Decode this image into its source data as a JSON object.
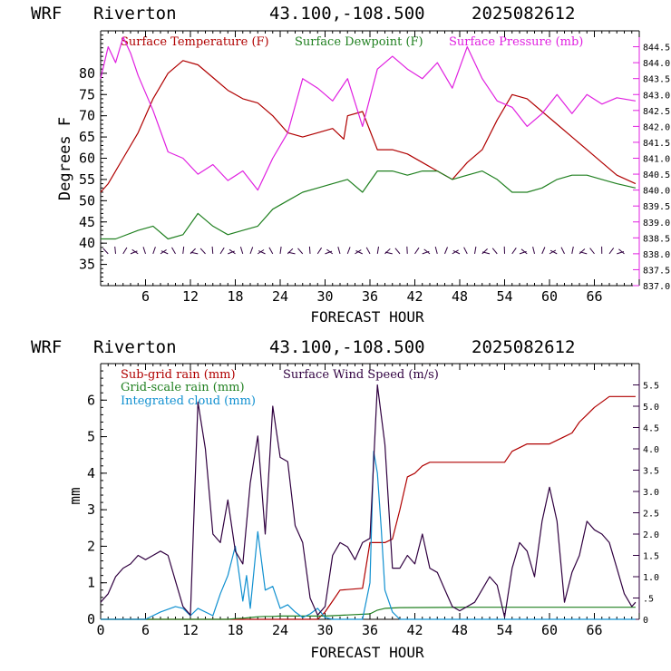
{
  "header": {
    "model": "WRF",
    "station": "Riverton",
    "coords": "43.100,-108.500",
    "run": "2025082612"
  },
  "colors": {
    "temp": "#b00000",
    "dew": "#208020",
    "pres": "#e020e0",
    "subgrid": "#b00000",
    "gridscale": "#208020",
    "cloud": "#1090d0",
    "wind": "#300040"
  },
  "chart_data": [
    {
      "type": "line",
      "xlabel": "FORECAST HOUR",
      "ylabel": "Degrees F",
      "xlim": [
        0,
        72
      ],
      "ylim": [
        30,
        90
      ],
      "y2lim": [
        837.0,
        845.0
      ],
      "xticks": [
        "6",
        "12",
        "18",
        "24",
        "30",
        "36",
        "42",
        "48",
        "54",
        "60",
        "66"
      ],
      "yticks": [
        "35",
        "40",
        "45",
        "50",
        "55",
        "60",
        "65",
        "70",
        "75",
        "80"
      ],
      "y2ticks": [
        "837.0",
        "837.5",
        "838.0",
        "838.5",
        "839.0",
        "839.5",
        "840.0",
        "840.5",
        "841.0",
        "841.5",
        "842.0",
        "842.5",
        "843.0",
        "843.5",
        "844.0",
        "844.5"
      ],
      "series": [
        {
          "name": "Surface Temperature (F)",
          "axis": "left",
          "x": [
            0,
            1,
            3,
            5,
            7,
            9,
            11,
            13,
            15,
            17,
            19,
            21,
            23,
            25,
            27,
            29,
            31,
            32.5,
            33,
            35,
            37,
            39,
            41,
            43,
            45,
            47,
            49,
            51,
            53,
            55,
            57,
            59,
            61,
            63,
            65,
            67,
            69,
            71.5
          ],
          "y": [
            52,
            54,
            60,
            66,
            74,
            80,
            83,
            82,
            79,
            76,
            74,
            73,
            70,
            66,
            65,
            66,
            67,
            64.5,
            70,
            71,
            62,
            62,
            61,
            59,
            57,
            55,
            59,
            62,
            69,
            75,
            74,
            71,
            68,
            65,
            62,
            59,
            56,
            54
          ]
        },
        {
          "name": "Surface Dewpoint (F)",
          "axis": "left",
          "x": [
            0,
            2,
            5,
            7,
            9,
            11,
            13,
            15,
            17,
            19,
            21,
            23,
            25,
            27,
            29,
            31,
            33,
            35,
            37,
            39,
            41,
            43,
            45,
            47,
            49,
            51,
            53,
            55,
            57,
            59,
            61,
            63,
            65,
            67,
            69,
            71.5
          ],
          "y": [
            41,
            41,
            43,
            44,
            41,
            42,
            47,
            44,
            42,
            43,
            44,
            48,
            50,
            52,
            53,
            54,
            55,
            52,
            57,
            57,
            56,
            57,
            57,
            55,
            56,
            57,
            55,
            52,
            52,
            53,
            55,
            56,
            56,
            55,
            54,
            53
          ]
        },
        {
          "name": "Surface Pressure (mb)",
          "axis": "right",
          "x": [
            0,
            1,
            2,
            3,
            4,
            5,
            7,
            9,
            11,
            13,
            15,
            17,
            19,
            21,
            23,
            25,
            27,
            29,
            31,
            33,
            35,
            37,
            39,
            41,
            43,
            45,
            47,
            49,
            51,
            53,
            55,
            57,
            59,
            61,
            63,
            65,
            67,
            69,
            71.5
          ],
          "y": [
            843.5,
            844.5,
            844,
            844.8,
            844.3,
            843.6,
            842.5,
            841.2,
            841,
            840.5,
            840.8,
            840.3,
            840.6,
            840,
            841,
            841.8,
            843.5,
            843.2,
            842.8,
            843.5,
            842,
            843.8,
            844.2,
            843.8,
            843.5,
            844,
            843.2,
            844.5,
            843.5,
            842.8,
            842.6,
            842,
            842.4,
            843,
            842.4,
            843,
            842.7,
            842.9,
            842.8
          ]
        }
      ],
      "wind_barbs": "row of wind barbs along the bottom of the panel"
    },
    {
      "type": "line",
      "xlabel": "FORECAST HOUR",
      "ylabel": "mm",
      "xlim": [
        0,
        72
      ],
      "ylim": [
        0,
        7
      ],
      "y2lim": [
        0,
        6.0
      ],
      "xticks": [
        "0",
        "6",
        "12",
        "18",
        "24",
        "30",
        "36",
        "42",
        "48",
        "54",
        "60",
        "66"
      ],
      "yticks": [
        "0",
        "1",
        "2",
        "3",
        "4",
        "5",
        "6"
      ],
      "y2ticks": [
        "0",
        ".5",
        "1.0",
        "1.5",
        "2.0",
        "2.5",
        "3.0",
        "3.5",
        "4.0",
        "4.5",
        "5.0",
        "5.5"
      ],
      "series": [
        {
          "name": "Sub-grid rain (mm)",
          "axis": "left",
          "x": [
            0,
            29,
            30,
            31,
            32,
            35,
            36,
            37,
            38,
            39,
            40,
            41,
            42,
            43,
            44,
            45,
            46,
            48,
            50,
            52,
            54,
            55,
            56,
            57,
            58,
            60,
            62,
            63,
            64,
            65,
            66,
            67,
            68,
            70,
            71.5
          ],
          "y": [
            0,
            0,
            0.2,
            0.5,
            0.8,
            0.85,
            2.1,
            2.1,
            2.1,
            2.2,
            3.0,
            3.9,
            4.0,
            4.2,
            4.3,
            4.3,
            4.3,
            4.3,
            4.3,
            4.3,
            4.3,
            4.6,
            4.7,
            4.8,
            4.8,
            4.8,
            5.0,
            5.1,
            5.4,
            5.6,
            5.8,
            5.95,
            6.1,
            6.1,
            6.1
          ]
        },
        {
          "name": "Grid-scale rain (mm)",
          "axis": "left",
          "x": [
            0,
            17,
            18,
            19,
            20,
            21,
            22,
            23,
            24,
            26,
            30,
            36,
            37,
            38,
            40,
            50,
            60,
            71.5
          ],
          "y": [
            0,
            0,
            0.02,
            0.03,
            0.05,
            0.07,
            0.08,
            0.08,
            0.09,
            0.09,
            0.09,
            0.15,
            0.25,
            0.3,
            0.32,
            0.33,
            0.33,
            0.33
          ]
        },
        {
          "name": "Integrated cloud (mm)",
          "axis": "left",
          "x": [
            0,
            6,
            8,
            10,
            11,
            12,
            13,
            15,
            16,
            17,
            18,
            19,
            19.5,
            20,
            21,
            22,
            23,
            24,
            25,
            26,
            27,
            28,
            29,
            30,
            31,
            35,
            36,
            36.5,
            37,
            37.5,
            38,
            39,
            40,
            41,
            71.5
          ],
          "y": [
            0,
            0,
            0.2,
            0.35,
            0.3,
            0.1,
            0.3,
            0.1,
            0.7,
            1.2,
            2.0,
            0.5,
            1.2,
            0.3,
            2.4,
            0.8,
            0.9,
            0.3,
            0.4,
            0.2,
            0.05,
            0.15,
            0.3,
            0.05,
            0,
            0,
            1.0,
            4.6,
            4.0,
            2.5,
            0.8,
            0.2,
            0,
            0,
            0
          ]
        },
        {
          "name": "Surface Wind Speed (m/s)",
          "axis": "right",
          "x": [
            0,
            1,
            2,
            3,
            4,
            5,
            6,
            7,
            8,
            9,
            10,
            11,
            12,
            13,
            14,
            15,
            16,
            17,
            18,
            19,
            20,
            21,
            22,
            23,
            24,
            25,
            26,
            27,
            28,
            29,
            30,
            31,
            32,
            33,
            34,
            35,
            36,
            37,
            38,
            39,
            40,
            41,
            42,
            43,
            44,
            45,
            46,
            47,
            48,
            49,
            50,
            51,
            52,
            53,
            54,
            55,
            56,
            57,
            58,
            59,
            60,
            61,
            62,
            63,
            64,
            65,
            66,
            67,
            68,
            69,
            70,
            71,
            71.5
          ],
          "y": [
            0.4,
            0.6,
            1.0,
            1.2,
            1.3,
            1.5,
            1.4,
            1.5,
            1.6,
            1.5,
            0.9,
            0.3,
            0.1,
            5.1,
            4.0,
            2.0,
            1.8,
            2.8,
            1.6,
            1.3,
            3.2,
            4.3,
            2.0,
            5.0,
            3.8,
            3.7,
            2.2,
            1.8,
            0.5,
            0.1,
            0.3,
            1.5,
            1.8,
            1.7,
            1.4,
            1.8,
            1.9,
            5.5,
            4.1,
            1.2,
            1.2,
            1.5,
            1.3,
            2.0,
            1.2,
            1.1,
            0.7,
            0.3,
            0.2,
            0.3,
            0.4,
            0.7,
            1.0,
            0.8,
            0.05,
            1.2,
            1.8,
            1.6,
            1.0,
            2.3,
            3.1,
            2.3,
            0.4,
            1.1,
            1.5,
            2.3,
            2.1,
            2.0,
            1.8,
            1.2,
            0.6,
            0.3,
            0.4
          ]
        }
      ]
    }
  ]
}
